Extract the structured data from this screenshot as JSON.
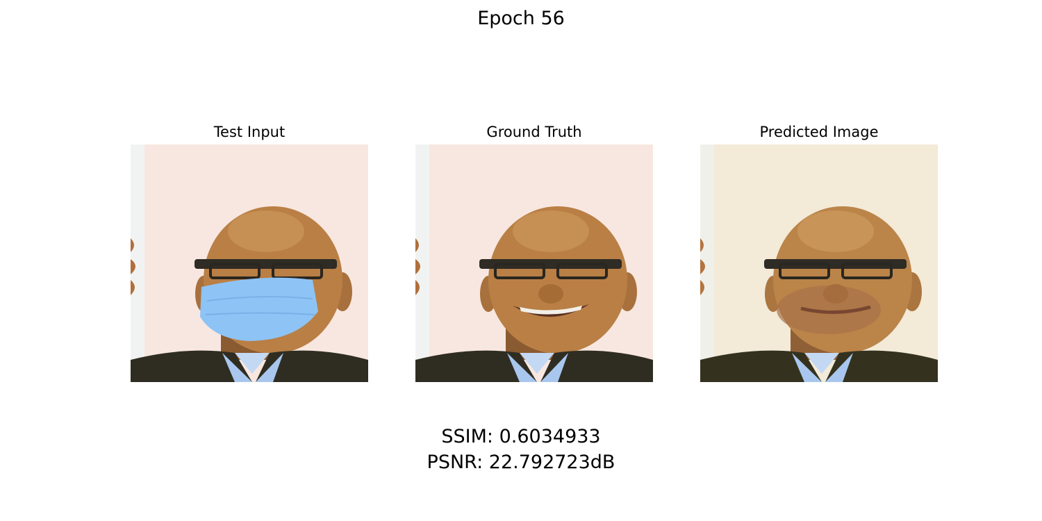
{
  "figure": {
    "suptitle": "Epoch 56",
    "panels": [
      {
        "title": "Test Input",
        "image": "face-with-blue-surgical-mask"
      },
      {
        "title": "Ground Truth",
        "image": "face-unmasked-smiling"
      },
      {
        "title": "Predicted Image",
        "image": "face-inpainted-reconstruction"
      }
    ],
    "metrics": {
      "ssim_text": "SSIM: 0.6034933",
      "psnr_text": "PSNR: 22.792723dB"
    }
  },
  "colors": {
    "background": "#ffffff",
    "backdrop": "#f7e6df",
    "skin": "#b97f45",
    "mask": "#8ec3f5",
    "shirt": "#a9c7ee",
    "jacket": "#2f2d22"
  }
}
